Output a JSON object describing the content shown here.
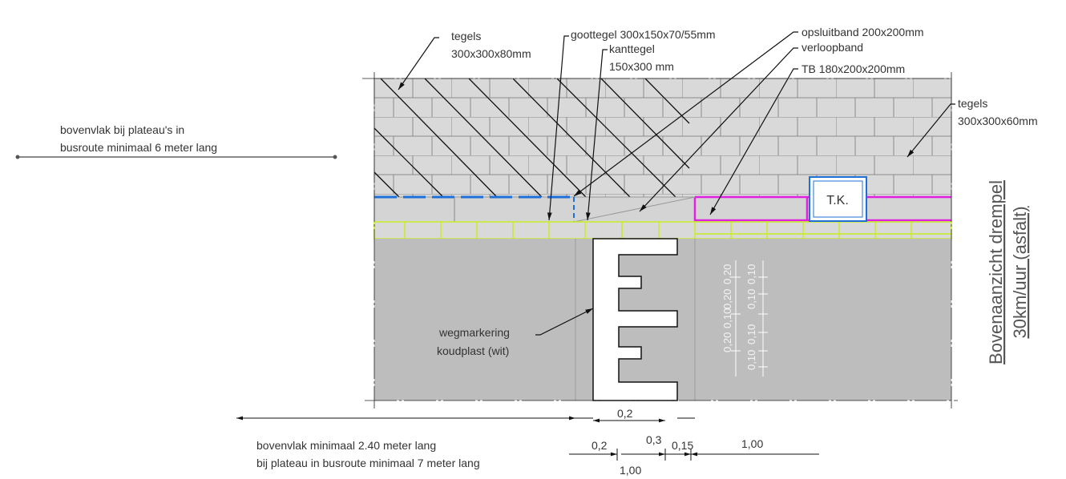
{
  "annotations": [
    {
      "lines": [
        "tegels",
        "300x300x80mm"
      ]
    },
    {
      "lines": [
        "goottegel 300x150x70/55mm"
      ]
    },
    {
      "lines": [
        "kanttegel",
        "150x300 mm"
      ]
    },
    {
      "lines": [
        "opsluitband 200x200mm"
      ]
    },
    {
      "lines": [
        "verloopband"
      ]
    },
    {
      "lines": [
        "TB 180x200x200mm"
      ]
    },
    {
      "lines": [
        "tegels",
        "300x300x60mm"
      ]
    },
    {
      "lines": [
        "bovenvlak bij plateau's in",
        "busroute minimaal 6 meter lang"
      ]
    },
    {
      "lines": [
        "T.K."
      ]
    },
    {
      "lines": [
        "wegmarkering",
        "koudplast (wit)"
      ]
    },
    {
      "lines": [
        "bovenvlak minimaal 2.40 meter lang",
        "bij plateau in busroute minimaal 7 meter lang"
      ]
    }
  ],
  "dimensions": [
    "0,2",
    "0,2",
    "0,3",
    "0,15",
    "1,00",
    "1,00"
  ],
  "marking_dimensions": [
    [
      "0,20",
      "0,20"
    ],
    [
      "0,20",
      "0,10"
    ],
    [
      "0,10",
      "0,10"
    ],
    [
      "0,10",
      "0,10"
    ]
  ],
  "title": [
    "Bovenaanzicht drempel",
    "30km/uur (asfalt)"
  ]
}
